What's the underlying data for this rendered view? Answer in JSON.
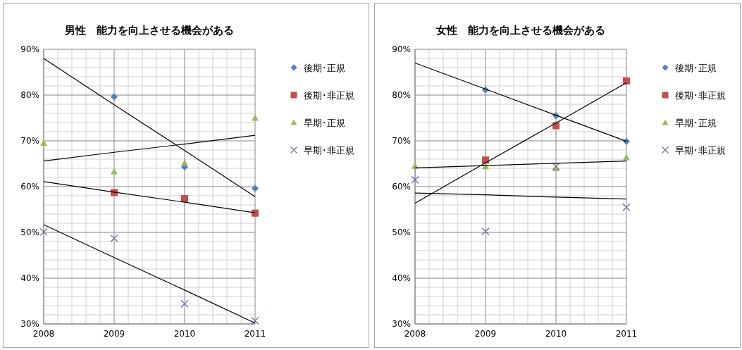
{
  "chart_data": [
    {
      "type": "scatter",
      "title": "男性　能力を向上させる機会がある",
      "x": [
        2008,
        2009,
        2010,
        2011
      ],
      "xlim": [
        2008,
        2011
      ],
      "xticks": [
        2008,
        2009,
        2010,
        2011
      ],
      "ylim": [
        30,
        90
      ],
      "yticks": [
        {
          "value": 30,
          "label": "30%"
        },
        {
          "value": 40,
          "label": "40%"
        },
        {
          "value": 50,
          "label": "50%"
        },
        {
          "value": 60,
          "label": "60%"
        },
        {
          "value": 70,
          "label": "70%"
        },
        {
          "value": 80,
          "label": "80%"
        },
        {
          "value": 90,
          "label": "90%"
        }
      ],
      "grid": true,
      "legend": "right",
      "series": [
        {
          "name": "後期･正規",
          "color": "#4f81bd",
          "marker": "diamond",
          "values": [
            null,
            79.6,
            64.3,
            59.6
          ]
        },
        {
          "name": "後期･非正規",
          "color": "#c0504d",
          "marker": "square",
          "values": [
            null,
            58.7,
            57.4,
            54.2
          ]
        },
        {
          "name": "早期･正規",
          "color": "#9bbb59",
          "marker": "triangle",
          "values": [
            69.5,
            63.3,
            65.2,
            75.0
          ]
        },
        {
          "name": "早期･非正規",
          "color": "#8064a2",
          "marker": "cross",
          "values": [
            50.1,
            48.7,
            34.4,
            30.7
          ]
        },
        {
          "type": "line",
          "color": "#000000",
          "marker": "none",
          "values": [
            88.0,
            77.9,
            67.9,
            57.8
          ]
        },
        {
          "type": "line",
          "color": "#000000",
          "marker": "none",
          "values": [
            61.1,
            58.8,
            56.6,
            54.3
          ]
        },
        {
          "type": "line",
          "color": "#000000",
          "marker": "none",
          "values": [
            65.6,
            67.5,
            69.3,
            71.2
          ]
        },
        {
          "type": "line",
          "color": "#000000",
          "marker": "none",
          "values": [
            51.7,
            44.5,
            37.4,
            30.2
          ]
        }
      ]
    },
    {
      "type": "scatter",
      "title": "女性　能力を向上させる機会がある",
      "x": [
        2008,
        2009,
        2010,
        2011
      ],
      "xlim": [
        2008,
        2011
      ],
      "xticks": [
        2008,
        2009,
        2010,
        2011
      ],
      "ylim": [
        30,
        90
      ],
      "yticks": [
        {
          "value": 30,
          "label": "30%"
        },
        {
          "value": 40,
          "label": "40%"
        },
        {
          "value": 50,
          "label": "50%"
        },
        {
          "value": 60,
          "label": "60%"
        },
        {
          "value": 70,
          "label": "70%"
        },
        {
          "value": 80,
          "label": "80%"
        },
        {
          "value": 90,
          "label": "90%"
        }
      ],
      "grid": true,
      "legend": "right",
      "series": [
        {
          "name": "後期･正規",
          "color": "#4f81bd",
          "marker": "diamond",
          "values": [
            null,
            81.1,
            75.5,
            69.9
          ]
        },
        {
          "name": "後期･非正規",
          "color": "#c0504d",
          "marker": "square",
          "values": [
            null,
            65.8,
            73.3,
            83.1
          ]
        },
        {
          "name": "早期･正規",
          "color": "#9bbb59",
          "marker": "triangle",
          "values": [
            64.5,
            64.4,
            64.0,
            66.4
          ]
        },
        {
          "name": "早期･非正規",
          "color": "#8064a2",
          "marker": "cross",
          "values": [
            61.5,
            50.2,
            64.4,
            55.5
          ]
        },
        {
          "type": "line",
          "color": "#000000",
          "marker": "none",
          "values": [
            87.0,
            81.3,
            75.6,
            69.9
          ]
        },
        {
          "type": "line",
          "color": "#000000",
          "marker": "none",
          "values": [
            56.4,
            65.2,
            73.9,
            82.7
          ]
        },
        {
          "type": "line",
          "color": "#000000",
          "marker": "none",
          "values": [
            64.1,
            64.6,
            65.1,
            65.6
          ]
        },
        {
          "type": "line",
          "color": "#000000",
          "marker": "none",
          "values": [
            58.6,
            58.2,
            57.7,
            57.3
          ]
        }
      ]
    }
  ]
}
